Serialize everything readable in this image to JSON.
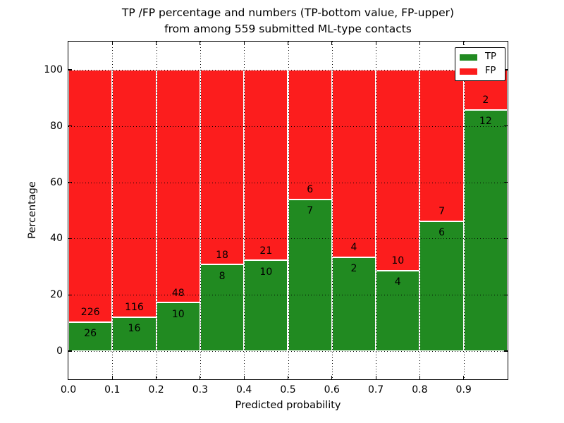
{
  "chart_data": {
    "type": "bar",
    "stacked": true,
    "title_line1": "TP /FP percentage and numbers (TP-bottom value, FP-upper)",
    "title_line2": "from among 559 submitted ML-type contacts",
    "xlabel": "Predicted probability",
    "ylabel": "Percentage",
    "total_submitted": 559,
    "categories": [
      "0.0",
      "0.1",
      "0.2",
      "0.3",
      "0.4",
      "0.5",
      "0.6",
      "0.7",
      "0.8",
      "0.9"
    ],
    "bin_width": 0.1,
    "series": [
      {
        "name": "TP",
        "color": "#218a21",
        "counts": [
          26,
          16,
          10,
          8,
          10,
          7,
          2,
          4,
          6,
          12
        ]
      },
      {
        "name": "FP",
        "color": "#fc1d1d",
        "counts": [
          226,
          116,
          48,
          18,
          21,
          6,
          4,
          10,
          7,
          2
        ]
      }
    ],
    "tp_percent": [
      10.3,
      12.1,
      17.2,
      30.8,
      32.3,
      53.8,
      33.3,
      28.6,
      46.2,
      85.7
    ],
    "stack_total_percent": 100,
    "ylim": [
      -10,
      110
    ],
    "ytick_values": [
      0,
      20,
      40,
      60,
      80,
      100
    ],
    "yticks": [
      "0",
      "20",
      "40",
      "60",
      "80",
      "100"
    ],
    "xticks": [
      "0.0",
      "0.1",
      "0.2",
      "0.3",
      "0.4",
      "0.5",
      "0.6",
      "0.7",
      "0.8",
      "0.9"
    ],
    "grid": "dotted",
    "legend": {
      "position": "upper-right",
      "entries": [
        {
          "label": "TP",
          "color": "#218a21"
        },
        {
          "label": "FP",
          "color": "#fc1d1d"
        }
      ]
    }
  }
}
